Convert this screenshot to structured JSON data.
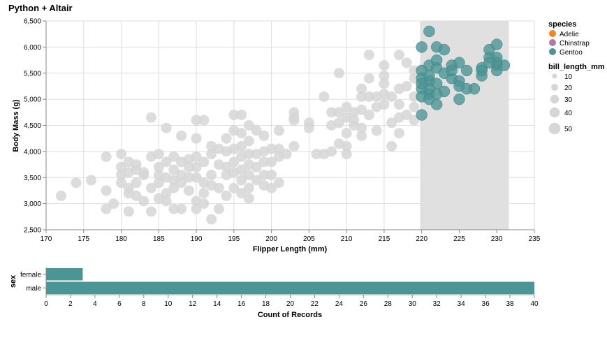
{
  "title": "Python + Altair",
  "colors": {
    "adelie": "#f58518",
    "chinstrap": "#b279a2",
    "gentoo": "#54a24b",
    "gentoo_display": "#4c9595",
    "unselected": "#d6d6d6",
    "brush": "#e0e0e0",
    "bar": "#4c9595",
    "grid": "#dddddd"
  },
  "chart_data": [
    {
      "type": "scatter",
      "xlabel": "Flipper Length (mm)",
      "ylabel": "Body Mass (g)",
      "xlim": [
        170,
        235
      ],
      "ylim": [
        2500,
        6500
      ],
      "x_ticks": [
        "170",
        "175",
        "180",
        "185",
        "190",
        "195",
        "200",
        "205",
        "210",
        "215",
        "220",
        "225",
        "230",
        "235"
      ],
      "y_ticks": [
        "2,500",
        "3,000",
        "3,500",
        "4,000",
        "4,500",
        "5,000",
        "5,500",
        "6,000",
        "6,500"
      ],
      "grid": true,
      "brush_x": [
        219.8,
        231.6
      ],
      "legend": {
        "color_title": "species",
        "color_entries": [
          "Adelie",
          "Chinstrap",
          "Gentoo"
        ],
        "size_title": "bill_length_mm",
        "size_entries": [
          "10",
          "20",
          "30",
          "40",
          "50"
        ],
        "placement": "right"
      },
      "selected_points": [
        [
          220,
          6000
        ],
        [
          221,
          6300
        ],
        [
          222,
          6000
        ],
        [
          223,
          5950
        ],
        [
          220,
          5550
        ],
        [
          221,
          5650
        ],
        [
          222,
          5600
        ],
        [
          224,
          5650
        ],
        [
          225,
          5700
        ],
        [
          226,
          5550
        ],
        [
          228,
          5600
        ],
        [
          228,
          5450
        ],
        [
          229,
          5800
        ],
        [
          229,
          5950
        ],
        [
          230,
          6050
        ],
        [
          230,
          5800
        ],
        [
          230,
          5650
        ],
        [
          230,
          5550
        ],
        [
          231,
          5650
        ],
        [
          220,
          5400
        ],
        [
          221,
          5350
        ],
        [
          222,
          5300
        ],
        [
          224,
          5400
        ],
        [
          225,
          5350
        ],
        [
          220,
          5200
        ],
        [
          221,
          5100
        ],
        [
          223,
          5150
        ],
        [
          225,
          5250
        ],
        [
          226,
          5200
        ],
        [
          227,
          5200
        ],
        [
          220,
          5050
        ],
        [
          221,
          5000
        ],
        [
          222,
          4900
        ],
        [
          225,
          5000
        ],
        [
          220,
          4700
        ],
        [
          221,
          5200
        ],
        [
          223,
          5500
        ],
        [
          222,
          5750
        ],
        [
          224,
          5550
        ],
        [
          228,
          5550
        ],
        [
          230,
          5700
        ],
        [
          229,
          5700
        ],
        [
          221,
          5450
        ],
        [
          222,
          5100
        ],
        [
          220,
          5300
        ]
      ],
      "unselected_points": [
        [
          172,
          3150
        ],
        [
          174,
          3400
        ],
        [
          176,
          3450
        ],
        [
          178,
          3900
        ],
        [
          178,
          3250
        ],
        [
          178,
          2900
        ],
        [
          179,
          3000
        ],
        [
          180,
          3950
        ],
        [
          180,
          3700
        ],
        [
          180,
          3550
        ],
        [
          181,
          3800
        ],
        [
          181,
          3600
        ],
        [
          181,
          3300
        ],
        [
          181,
          3200
        ],
        [
          181,
          2850
        ],
        [
          182,
          3750
        ],
        [
          182,
          3400
        ],
        [
          182,
          3150
        ],
        [
          183,
          3550
        ],
        [
          183,
          3050
        ],
        [
          184,
          4650
        ],
        [
          184,
          3900
        ],
        [
          184,
          3300
        ],
        [
          184,
          2850
        ],
        [
          185,
          3950
        ],
        [
          185,
          3700
        ],
        [
          185,
          3550
        ],
        [
          185,
          3400
        ],
        [
          185,
          3100
        ],
        [
          186,
          4450
        ],
        [
          186,
          3800
        ],
        [
          186,
          3500
        ],
        [
          186,
          3200
        ],
        [
          187,
          3650
        ],
        [
          187,
          3450
        ],
        [
          187,
          3300
        ],
        [
          187,
          2900
        ],
        [
          188,
          4300
        ],
        [
          188,
          3800
        ],
        [
          188,
          3550
        ],
        [
          188,
          3400
        ],
        [
          188,
          2900
        ],
        [
          189,
          3700
        ],
        [
          189,
          3500
        ],
        [
          189,
          3250
        ],
        [
          190,
          4600
        ],
        [
          190,
          4250
        ],
        [
          190,
          3900
        ],
        [
          190,
          3700
        ],
        [
          190,
          3500
        ],
        [
          190,
          3050
        ],
        [
          190,
          2900
        ],
        [
          191,
          4600
        ],
        [
          191,
          3800
        ],
        [
          191,
          3400
        ],
        [
          191,
          3000
        ],
        [
          192,
          4100
        ],
        [
          192,
          3950
        ],
        [
          192,
          3550
        ],
        [
          192,
          2700
        ],
        [
          193,
          4050
        ],
        [
          193,
          3750
        ],
        [
          193,
          3300
        ],
        [
          193,
          2900
        ],
        [
          194,
          4250
        ],
        [
          194,
          4000
        ],
        [
          194,
          3550
        ],
        [
          194,
          3150
        ],
        [
          195,
          4700
        ],
        [
          195,
          4400
        ],
        [
          195,
          4050
        ],
        [
          195,
          3800
        ],
        [
          195,
          3600
        ],
        [
          195,
          3300
        ],
        [
          196,
          4700
        ],
        [
          196,
          4350
        ],
        [
          196,
          4100
        ],
        [
          196,
          3900
        ],
        [
          196,
          3650
        ],
        [
          196,
          3450
        ],
        [
          197,
          4500
        ],
        [
          197,
          4200
        ],
        [
          197,
          3950
        ],
        [
          197,
          3750
        ],
        [
          197,
          3550
        ],
        [
          197,
          3300
        ],
        [
          198,
          4400
        ],
        [
          198,
          3950
        ],
        [
          198,
          3700
        ],
        [
          198,
          3450
        ],
        [
          199,
          4000
        ],
        [
          199,
          3800
        ],
        [
          199,
          3550
        ],
        [
          199,
          3350
        ],
        [
          200,
          4050
        ],
        [
          200,
          3800
        ],
        [
          200,
          3550
        ],
        [
          201,
          4400
        ],
        [
          201,
          4050
        ],
        [
          201,
          3900
        ],
        [
          201,
          3400
        ],
        [
          202,
          3950
        ],
        [
          203,
          4750
        ],
        [
          203,
          4650
        ],
        [
          203,
          4100
        ],
        [
          205,
          4550
        ],
        [
          205,
          4450
        ],
        [
          206,
          3950
        ],
        [
          207,
          5050
        ],
        [
          207,
          3950
        ],
        [
          208,
          4750
        ],
        [
          208,
          4500
        ],
        [
          208,
          4000
        ],
        [
          209,
          5500
        ],
        [
          209,
          4750
        ],
        [
          209,
          4550
        ],
        [
          210,
          4850
        ],
        [
          210,
          4650
        ],
        [
          210,
          4350
        ],
        [
          210,
          4100
        ],
        [
          210,
          3950
        ],
        [
          211,
          4750
        ],
        [
          211,
          4500
        ],
        [
          212,
          5200
        ],
        [
          212,
          4800
        ],
        [
          212,
          4450
        ],
        [
          212,
          4300
        ],
        [
          213,
          5850
        ],
        [
          213,
          5400
        ],
        [
          213,
          5050
        ],
        [
          213,
          4700
        ],
        [
          214,
          4850
        ],
        [
          214,
          4400
        ],
        [
          215,
          5650
        ],
        [
          215,
          5450
        ],
        [
          215,
          5300
        ],
        [
          215,
          5100
        ],
        [
          215,
          4900
        ],
        [
          216,
          5050
        ],
        [
          216,
          4550
        ],
        [
          216,
          4100
        ],
        [
          217,
          5850
        ],
        [
          217,
          5200
        ],
        [
          217,
          4900
        ],
        [
          217,
          4650
        ],
        [
          217,
          4350
        ],
        [
          218,
          5700
        ],
        [
          218,
          5250
        ],
        [
          218,
          4700
        ],
        [
          219,
          5550
        ],
        [
          219,
          5400
        ],
        [
          219,
          5050
        ],
        [
          219,
          4850
        ],
        [
          219,
          4600
        ],
        [
          183,
          3600
        ],
        [
          189,
          3850
        ],
        [
          191,
          3200
        ],
        [
          194,
          3700
        ],
        [
          197,
          3100
        ],
        [
          199,
          4300
        ],
        [
          186,
          3050
        ],
        [
          180,
          3400
        ],
        [
          182,
          3650
        ],
        [
          187,
          3900
        ],
        [
          192,
          3350
        ],
        [
          196,
          3200
        ],
        [
          200,
          3300
        ],
        [
          203,
          4600
        ],
        [
          209,
          4150
        ],
        [
          211,
          4600
        ],
        [
          214,
          5050
        ],
        [
          212,
          5050
        ]
      ],
      "size_note": "points drawn at uniform radius"
    },
    {
      "type": "bar",
      "orientation": "horizontal",
      "categories": [
        "female",
        "male"
      ],
      "values": [
        3,
        40
      ],
      "xlabel": "Count of Records",
      "ylabel": "sex",
      "xlim": [
        0,
        40
      ],
      "x_ticks": [
        "0",
        "2",
        "4",
        "6",
        "8",
        "10",
        "12",
        "14",
        "16",
        "18",
        "20",
        "22",
        "24",
        "26",
        "28",
        "30",
        "32",
        "34",
        "36",
        "38",
        "40"
      ],
      "grid": false
    }
  ]
}
